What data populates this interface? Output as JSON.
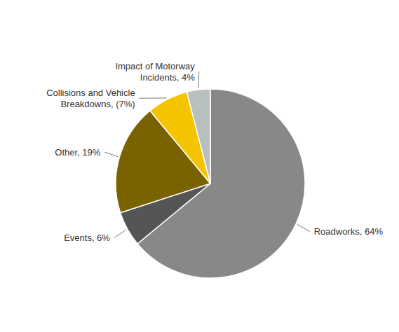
{
  "chart_data": {
    "type": "pie",
    "categories": [
      "Roadworks, 64%",
      "Events, 6%",
      "Other, 19%",
      "Collisions and Vehicle\nBreakdowns, (7%)",
      "Impact of Motorway\nIncidents, 4%"
    ],
    "values": [
      64,
      6,
      19,
      7,
      4
    ],
    "colors": [
      "#888888",
      "#555555",
      "#7a6200",
      "#f5c400",
      "#b8bfbf"
    ]
  }
}
